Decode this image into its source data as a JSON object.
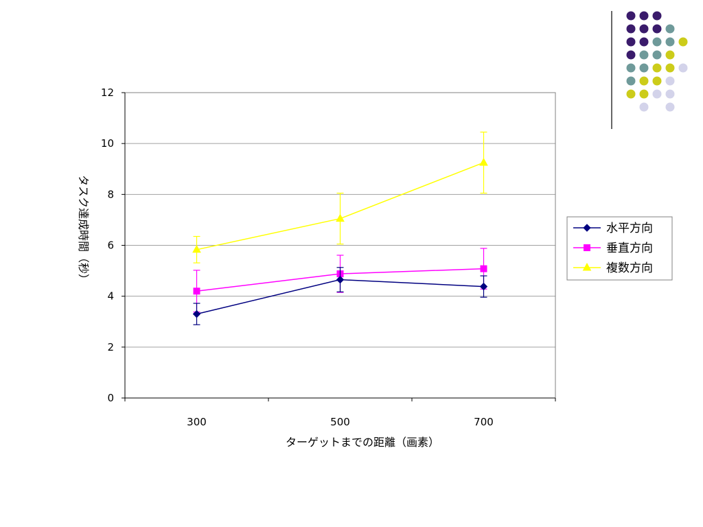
{
  "decoration": {
    "dot_colors": {
      "a": "#3a1b6b",
      "b": "#6f9a9a",
      "c": "#cccc1a",
      "d": "#d3d3ea"
    },
    "dot_rows": [
      [
        "a",
        "a",
        "a",
        "",
        ""
      ],
      [
        "a",
        "a",
        "a",
        "b",
        ""
      ],
      [
        "a",
        "a",
        "b",
        "b",
        "c"
      ],
      [
        "a",
        "b",
        "b",
        "c",
        ""
      ],
      [
        "b",
        "b",
        "c",
        "c",
        "d"
      ],
      [
        "b",
        "c",
        "c",
        "d",
        ""
      ],
      [
        "c",
        "c",
        "d",
        "d",
        ""
      ],
      [
        "",
        "d",
        "",
        "d",
        ""
      ]
    ]
  },
  "chart_data": {
    "type": "line",
    "categories": [
      "300",
      "500",
      "700"
    ],
    "x": [
      300,
      500,
      700
    ],
    "xlim": [
      200,
      800
    ],
    "ylim": [
      0,
      12
    ],
    "yticks": [
      "0",
      "2",
      "4",
      "6",
      "8",
      "10",
      "12"
    ],
    "xlabel": "ターゲットまでの距離（画素）",
    "ylabel": "タスク達成時間（秒）",
    "grid": true,
    "legend_position": "right",
    "series": [
      {
        "name": "水平方向",
        "color": "#000080",
        "marker": "diamond",
        "values": [
          3.3,
          4.65,
          4.38
        ],
        "error": [
          0.42,
          0.48,
          0.42
        ]
      },
      {
        "name": "垂直方向",
        "color": "#ff00ff",
        "marker": "square",
        "values": [
          4.2,
          4.88,
          5.08
        ],
        "error": [
          0.82,
          0.73,
          0.8
        ]
      },
      {
        "name": "複数方向",
        "color": "#ffff00",
        "marker": "triangle",
        "values": [
          5.83,
          7.05,
          9.25
        ],
        "error": [
          0.52,
          1.0,
          1.2
        ]
      }
    ]
  }
}
